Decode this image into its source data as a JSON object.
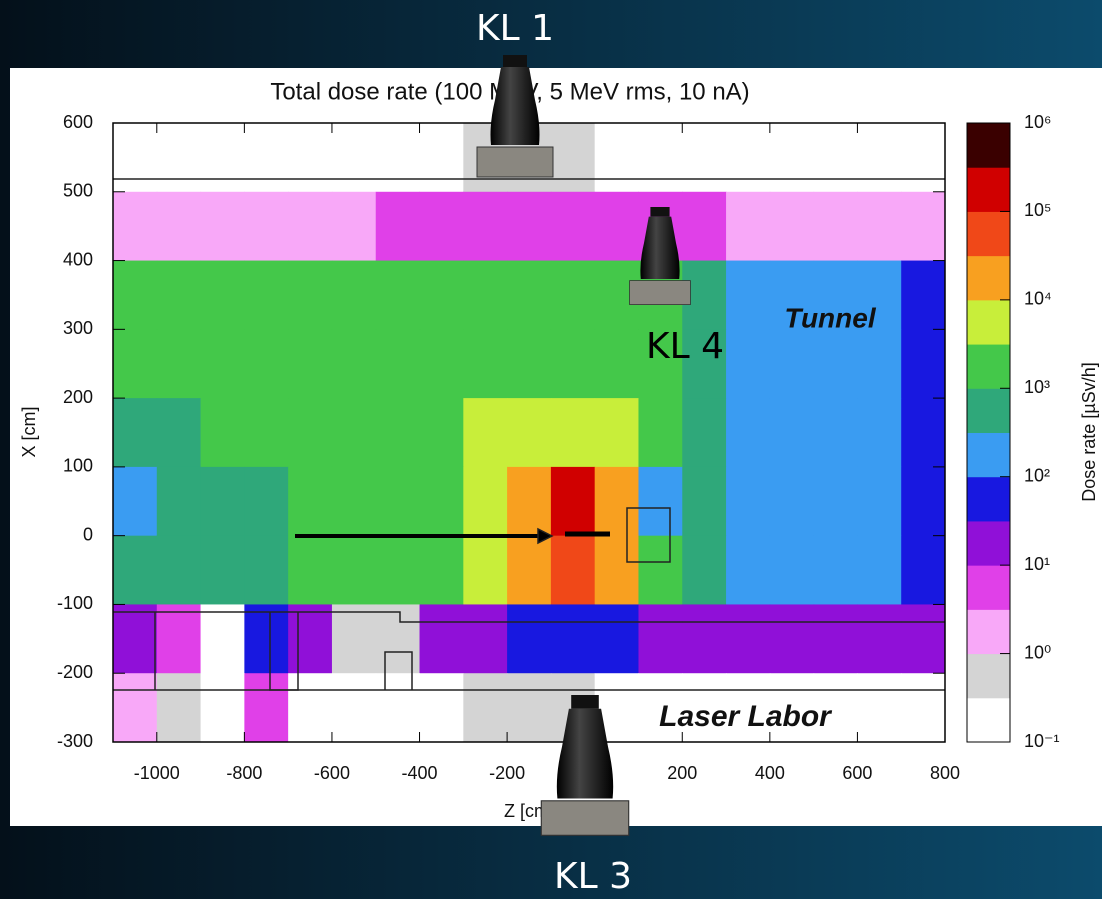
{
  "slide": {
    "labels": [
      "KL 1",
      "KL 4",
      "KL 3"
    ]
  },
  "chart_data": {
    "type": "heatmap",
    "title": "Total dose rate (100 MeV, 5 MeV rms, 10 nA)",
    "x_label": "Z [cm]",
    "y_label": "X [cm]",
    "colorbar_label": "Dose rate [µSv/h]",
    "annotations": [
      "Tunnel",
      "Laser Labor"
    ],
    "x": [
      -1050,
      -950,
      -850,
      -750,
      -650,
      -550,
      -450,
      -350,
      -250,
      -150,
      -50,
      50,
      150,
      250,
      350,
      450,
      550,
      650,
      750
    ],
    "y": [
      550,
      450,
      350,
      250,
      150,
      50,
      -50,
      -150,
      -250
    ],
    "values": [
      [
        0.2,
        0.2,
        0.2,
        0.2,
        0.2,
        0.2,
        0.2,
        0.2,
        0.5,
        0.5,
        0.5,
        0.2,
        0.2,
        0.2,
        0.2,
        0.2,
        0.2,
        0.2,
        0.2
      ],
      [
        3,
        3,
        3,
        3,
        3,
        3,
        5,
        5,
        5,
        8,
        8,
        8,
        5,
        5,
        3,
        3,
        3,
        3,
        3
      ],
      [
        1000,
        1000,
        1000,
        1000,
        1000,
        1000,
        1000,
        1500,
        2000,
        2000,
        2500,
        2500,
        1500,
        500,
        300,
        200,
        150,
        100,
        60
      ],
      [
        1000,
        1000,
        1000,
        1000,
        1000,
        1000,
        1000,
        2000,
        3000,
        3000,
        3000,
        2000,
        1000,
        500,
        300,
        200,
        150,
        100,
        60
      ],
      [
        800,
        800,
        1000,
        1000,
        1000,
        1000,
        2000,
        3000,
        5000,
        6000,
        6000,
        4000,
        1000,
        500,
        300,
        200,
        150,
        100,
        60
      ],
      [
        300,
        500,
        800,
        800,
        1000,
        1000,
        2000,
        3000,
        8000,
        30000,
        300000,
        30000,
        200,
        500,
        300,
        200,
        150,
        100,
        60
      ],
      [
        500,
        800,
        800,
        800,
        1000,
        1000,
        2000,
        3000,
        6000,
        20000,
        50000,
        10000,
        1500,
        500,
        300,
        200,
        150,
        100,
        60
      ],
      [
        30,
        5,
        0.2,
        50,
        10,
        0.5,
        0.5,
        10,
        30,
        50,
        60,
        50,
        30,
        20,
        20,
        20,
        20,
        20,
        30
      ],
      [
        3,
        0.5,
        0.2,
        5,
        0.3,
        0.2,
        0.2,
        0.2,
        0.5,
        0.5,
        0.5,
        0.3,
        0.2,
        0.2,
        0.2,
        0.2,
        0.2,
        0.2,
        0.2
      ]
    ],
    "xlim": [
      -1100,
      800
    ],
    "ylim": [
      -300,
      600
    ],
    "xticks": [
      -1000,
      -800,
      -600,
      -400,
      -200,
      200,
      400,
      600,
      800
    ],
    "yticks": [
      -300,
      -200,
      -100,
      0,
      100,
      200,
      300,
      400,
      500,
      600
    ],
    "yticks_extra": [],
    "colorlim": [
      0.1,
      1000000
    ],
    "color_scale": "log",
    "colorticks": [
      {
        "value": 0.1,
        "label": "10⁻¹"
      },
      {
        "value": 1,
        "label": "10⁰"
      },
      {
        "value": 10,
        "label": "10¹"
      },
      {
        "value": 100,
        "label": "10²"
      },
      {
        "value": 1000,
        "label": "10³"
      },
      {
        "value": 10000,
        "label": "10⁴"
      },
      {
        "value": 100000,
        "label": "10⁵"
      },
      {
        "value": 1000000,
        "label": "10⁶"
      }
    ],
    "colors": [
      "#ffffff",
      "#d4d4d4",
      "#f8a8f8",
      "#e040e8",
      "#9010d8",
      "#1818e0",
      "#3a9cf2",
      "#2fa87a",
      "#44c84a",
      "#c8ee3a",
      "#f8a020",
      "#f04818",
      "#d00000",
      "#3a0000"
    ]
  }
}
